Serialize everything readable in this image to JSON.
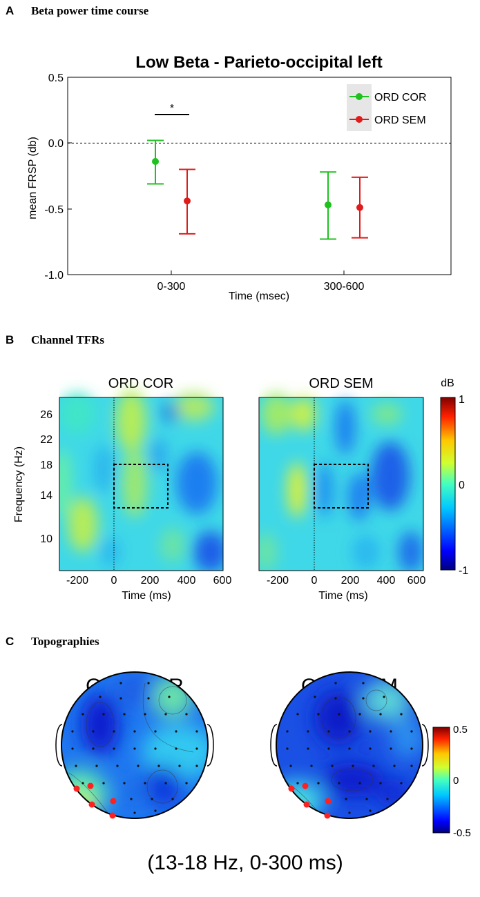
{
  "panels": {
    "a": {
      "letter": "A",
      "title": "Beta power time course"
    },
    "b": {
      "letter": "B",
      "title": "Channel TFRs"
    },
    "c": {
      "letter": "C",
      "title": "Topographies"
    }
  },
  "colors": {
    "cor": "#1ec11e",
    "sem": "#e01b1b",
    "legend_bg": "#e6e6e6"
  },
  "chart_data": [
    {
      "type": "errorbar",
      "title": "Low Beta - Parieto-occipital left",
      "xlabel": "Time (msec)",
      "ylabel": "mean FRSP (db)",
      "categories": [
        "0-300",
        "300-600"
      ],
      "ylim": [
        -1.0,
        0.5
      ],
      "yticks": [
        0.5,
        0.0,
        -0.5,
        -1.0
      ],
      "ytick_labels": [
        "0.5",
        "0.0",
        "-0.5",
        "-1.0"
      ],
      "reference_line": 0.0,
      "series": [
        {
          "name": "ORD COR",
          "color": "#1ec11e",
          "values": [
            -0.14,
            -0.47
          ],
          "lower": [
            -0.31,
            -0.73
          ],
          "upper": [
            0.02,
            -0.22
          ]
        },
        {
          "name": "ORD SEM",
          "color": "#e01b1b",
          "values": [
            -0.44,
            -0.49
          ],
          "lower": [
            -0.69,
            -0.72
          ],
          "upper": [
            -0.2,
            -0.26
          ]
        }
      ],
      "annotations": [
        {
          "text": "*",
          "category": "0-300",
          "y": 0.22
        }
      ]
    },
    {
      "type": "heatmap",
      "subplots": [
        "ORD COR",
        "ORD SEM"
      ],
      "xlabel": "Time (ms)",
      "ylabel": "Frequency (Hz)",
      "xlim": [
        -300,
        600
      ],
      "xticks": [
        -200,
        0,
        200,
        400,
        600
      ],
      "xtick_labels": [
        "-200",
        "0",
        "200",
        "400",
        "600"
      ],
      "ylim": [
        7,
        28
      ],
      "yticks": [
        10,
        14,
        18,
        22,
        26
      ],
      "ytick_labels": [
        "10",
        "14",
        "18",
        "22",
        "26"
      ],
      "roi": {
        "time": [
          0,
          300
        ],
        "freq": [
          13,
          18
        ]
      },
      "colorbar": {
        "label": "dB",
        "range": [
          -1,
          1
        ],
        "ticks": [
          1,
          0,
          -1
        ],
        "tick_labels": [
          "1",
          "0",
          "-1"
        ]
      }
    },
    {
      "type": "topography",
      "subplots": [
        "ORD COR",
        "ORD SEM"
      ],
      "caption": "(13-18 Hz, 0-300 ms)",
      "colorbar": {
        "range": [
          -0.5,
          0.5
        ],
        "ticks": [
          0.5,
          0,
          -0.5
        ],
        "tick_labels": [
          "0.5",
          "0",
          "-0.5"
        ]
      },
      "highlighted_channels_count": 6
    }
  ]
}
